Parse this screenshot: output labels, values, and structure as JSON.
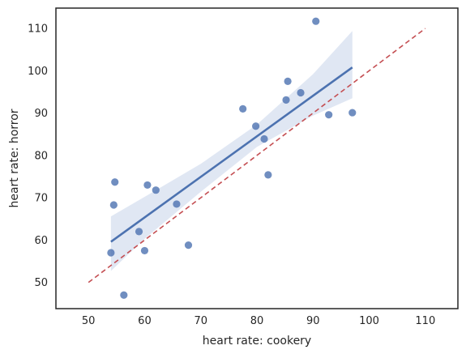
{
  "chart_data": {
    "type": "scatter",
    "title": "",
    "xlabel": "heart rate: cookery",
    "ylabel": "heart rate: horror",
    "xlim": [
      44.2,
      115.8
    ],
    "ylim": [
      43.8,
      114.8
    ],
    "xticks": [
      50,
      60,
      70,
      80,
      90,
      100,
      110
    ],
    "yticks": [
      50,
      60,
      70,
      80,
      90,
      100,
      110
    ],
    "grid": false,
    "points": [
      {
        "x": 54.0,
        "y": 57.0
      },
      {
        "x": 54.5,
        "y": 68.3
      },
      {
        "x": 54.7,
        "y": 73.7
      },
      {
        "x": 56.3,
        "y": 47.0
      },
      {
        "x": 59.0,
        "y": 62.0
      },
      {
        "x": 60.0,
        "y": 57.5
      },
      {
        "x": 60.5,
        "y": 73.0
      },
      {
        "x": 62.0,
        "y": 71.8
      },
      {
        "x": 65.7,
        "y": 68.5
      },
      {
        "x": 67.8,
        "y": 58.8
      },
      {
        "x": 77.5,
        "y": 91.0
      },
      {
        "x": 79.8,
        "y": 86.9
      },
      {
        "x": 81.3,
        "y": 83.9
      },
      {
        "x": 82.0,
        "y": 75.4
      },
      {
        "x": 85.2,
        "y": 93.1
      },
      {
        "x": 85.5,
        "y": 97.5
      },
      {
        "x": 87.8,
        "y": 94.8
      },
      {
        "x": 90.5,
        "y": 111.7
      },
      {
        "x": 92.8,
        "y": 89.6
      },
      {
        "x": 97.0,
        "y": 90.1
      }
    ],
    "regression_line": {
      "x": [
        54.0,
        97.0
      ],
      "y": [
        59.6,
        100.8
      ]
    },
    "confidence_band": {
      "x": [
        54.0,
        60.0,
        70.0,
        80.0,
        90.0,
        97.0
      ],
      "lower": [
        52.7,
        60.3,
        71.4,
        82.0,
        89.4,
        93.5
      ],
      "upper": [
        65.6,
        70.2,
        78.0,
        87.3,
        99.2,
        109.4
      ]
    },
    "identity_line": {
      "x": [
        50,
        110
      ],
      "y": [
        50,
        110
      ]
    },
    "colors": {
      "points": "#4c72b0",
      "regression": "#4c72b0",
      "band": "#dbe3f1",
      "identity": "#c44e52",
      "axes": "#262626"
    }
  }
}
